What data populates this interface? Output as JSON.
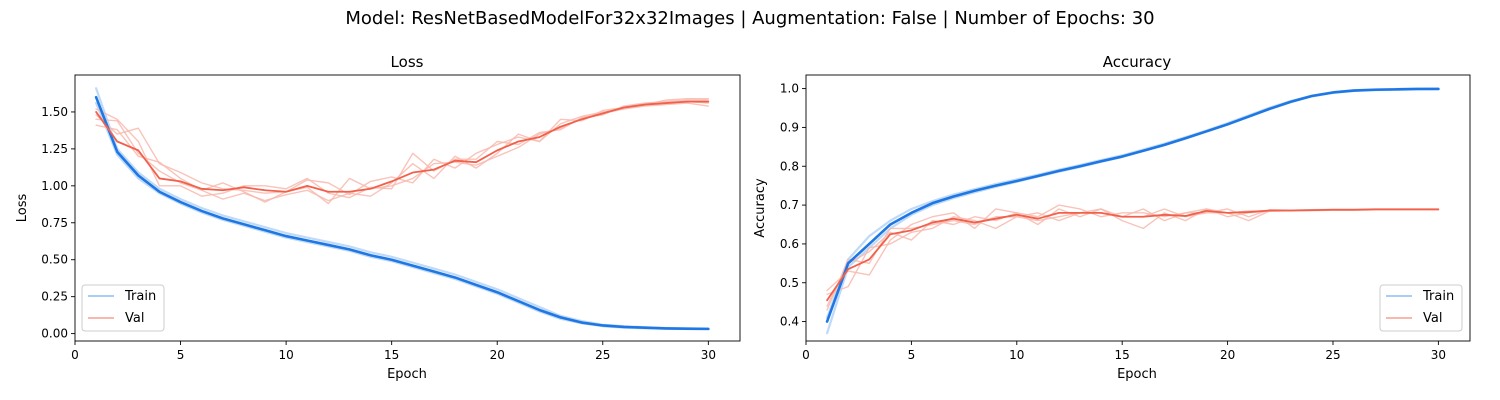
{
  "suptitle": "Model: ResNetBasedModelFor32x32Images | Augmentation: False | Number of Epochs: 30",
  "colors": {
    "train": "#1f77e4",
    "train_light": "#a8cdf6",
    "val": "#f0604a",
    "val_light": "#f8b8ad"
  },
  "chart_data": [
    {
      "type": "line",
      "title": "Loss",
      "xlabel": "Epoch",
      "ylabel": "Loss",
      "xlim": [
        0,
        31.5
      ],
      "ylim": [
        -0.05,
        1.75
      ],
      "xticks": [
        0,
        5,
        10,
        15,
        20,
        25,
        30
      ],
      "yticks": [
        0.0,
        0.25,
        0.5,
        0.75,
        1.0,
        1.25,
        1.5
      ],
      "ytick_labels": [
        "0.00",
        "0.25",
        "0.50",
        "0.75",
        "1.00",
        "1.25",
        "1.50"
      ],
      "legend": {
        "position": "lower-left",
        "entries": [
          "Train",
          "Val"
        ]
      },
      "grid": false,
      "x": [
        1,
        2,
        3,
        4,
        5,
        6,
        7,
        8,
        9,
        10,
        11,
        12,
        13,
        14,
        15,
        16,
        17,
        18,
        19,
        20,
        21,
        22,
        23,
        24,
        25,
        26,
        27,
        28,
        29,
        30
      ],
      "series": [
        {
          "name": "Train",
          "role": "mean",
          "values": [
            1.6,
            1.23,
            1.07,
            0.96,
            0.89,
            0.83,
            0.78,
            0.74,
            0.7,
            0.66,
            0.63,
            0.6,
            0.57,
            0.53,
            0.5,
            0.46,
            0.42,
            0.38,
            0.33,
            0.28,
            0.22,
            0.16,
            0.11,
            0.075,
            0.055,
            0.045,
            0.04,
            0.035,
            0.033,
            0.032
          ]
        },
        {
          "role": "run",
          "group": "Train",
          "values": [
            1.66,
            1.25,
            1.09,
            0.98,
            0.91,
            0.85,
            0.8,
            0.76,
            0.72,
            0.68,
            0.65,
            0.62,
            0.59,
            0.55,
            0.52,
            0.48,
            0.44,
            0.4,
            0.35,
            0.3,
            0.24,
            0.18,
            0.12,
            0.085,
            0.06,
            0.05,
            0.043,
            0.038,
            0.035,
            0.034
          ]
        },
        {
          "role": "run",
          "group": "Train",
          "values": [
            1.56,
            1.21,
            1.05,
            0.95,
            0.88,
            0.82,
            0.77,
            0.73,
            0.69,
            0.65,
            0.62,
            0.59,
            0.56,
            0.52,
            0.49,
            0.45,
            0.41,
            0.37,
            0.32,
            0.27,
            0.21,
            0.15,
            0.1,
            0.07,
            0.05,
            0.04,
            0.036,
            0.033,
            0.031,
            0.03
          ]
        },
        {
          "name": "Val",
          "role": "mean",
          "values": [
            1.5,
            1.3,
            1.24,
            1.05,
            1.03,
            0.98,
            0.97,
            0.99,
            0.97,
            0.96,
            1.0,
            0.96,
            0.96,
            0.98,
            1.03,
            1.09,
            1.11,
            1.17,
            1.16,
            1.24,
            1.3,
            1.33,
            1.4,
            1.45,
            1.49,
            1.53,
            1.55,
            1.56,
            1.57,
            1.57
          ]
        },
        {
          "role": "run",
          "group": "Val",
          "values": [
            1.45,
            1.44,
            1.22,
            1.1,
            1.02,
            0.97,
            0.91,
            0.95,
            0.9,
            0.94,
            0.97,
            0.9,
            0.95,
            0.93,
            1.02,
            1.15,
            1.05,
            1.2,
            1.12,
            1.22,
            1.35,
            1.3,
            1.42,
            1.47,
            1.5,
            1.52,
            1.55,
            1.58,
            1.59,
            1.59
          ]
        },
        {
          "role": "run",
          "group": "Val",
          "values": [
            1.52,
            1.45,
            1.3,
            1.0,
            1.0,
            0.93,
            0.95,
            1.0,
            1.0,
            0.98,
            1.05,
            0.95,
            0.92,
            0.99,
            0.98,
            1.22,
            1.1,
            1.18,
            1.18,
            1.3,
            1.28,
            1.36,
            1.38,
            1.46,
            1.48,
            1.54,
            1.56,
            1.57,
            1.58,
            1.58
          ]
        },
        {
          "role": "run",
          "group": "Val",
          "values": [
            1.48,
            1.35,
            1.39,
            1.15,
            1.09,
            1.02,
            0.98,
            0.97,
            0.95,
            0.96,
            1.04,
            1.02,
            0.94,
            1.03,
            1.06,
            1.02,
            1.18,
            1.12,
            1.22,
            1.28,
            1.33,
            1.3,
            1.45,
            1.44,
            1.51,
            1.53,
            1.55,
            1.56,
            1.57,
            1.56
          ]
        },
        {
          "role": "run",
          "group": "Val",
          "values": [
            1.41,
            1.38,
            1.2,
            1.16,
            1.05,
            0.97,
            1.02,
            0.96,
            0.89,
            0.96,
            0.99,
            0.88,
            1.05,
            0.98,
            1.0,
            1.05,
            1.15,
            1.16,
            1.14,
            1.2,
            1.26,
            1.35,
            1.39,
            1.46,
            1.49,
            1.52,
            1.54,
            1.55,
            1.56,
            1.54
          ]
        }
      ]
    },
    {
      "type": "line",
      "title": "Accuracy",
      "xlabel": "Epoch",
      "ylabel": "Accuracy",
      "xlim": [
        0,
        31.5
      ],
      "ylim": [
        0.35,
        1.035
      ],
      "xticks": [
        0,
        5,
        10,
        15,
        20,
        25,
        30
      ],
      "yticks": [
        0.4,
        0.5,
        0.6,
        0.7,
        0.8,
        0.9,
        1.0
      ],
      "ytick_labels": [
        "0.4",
        "0.5",
        "0.6",
        "0.7",
        "0.8",
        "0.9",
        "1.0"
      ],
      "legend": {
        "position": "lower-right",
        "entries": [
          "Train",
          "Val"
        ]
      },
      "grid": false,
      "x": [
        1,
        2,
        3,
        4,
        5,
        6,
        7,
        8,
        9,
        10,
        11,
        12,
        13,
        14,
        15,
        16,
        17,
        18,
        19,
        20,
        21,
        22,
        23,
        24,
        25,
        26,
        27,
        28,
        29,
        30
      ],
      "series": [
        {
          "name": "Train",
          "role": "mean",
          "values": [
            0.4,
            0.55,
            0.6,
            0.65,
            0.68,
            0.705,
            0.722,
            0.737,
            0.75,
            0.762,
            0.775,
            0.788,
            0.8,
            0.813,
            0.825,
            0.84,
            0.855,
            0.872,
            0.89,
            0.908,
            0.928,
            0.948,
            0.966,
            0.981,
            0.99,
            0.995,
            0.997,
            0.998,
            0.999,
            0.999
          ]
        },
        {
          "role": "run",
          "group": "Train",
          "values": [
            0.37,
            0.54,
            0.59,
            0.64,
            0.675,
            0.7,
            0.718,
            0.733,
            0.747,
            0.76,
            0.773,
            0.786,
            0.798,
            0.811,
            0.824,
            0.839,
            0.854,
            0.871,
            0.889,
            0.907,
            0.927,
            0.947,
            0.965,
            0.98,
            0.989,
            0.994,
            0.996,
            0.997,
            0.998,
            0.999
          ]
        },
        {
          "role": "run",
          "group": "Train",
          "values": [
            0.41,
            0.56,
            0.62,
            0.66,
            0.69,
            0.71,
            0.727,
            0.741,
            0.754,
            0.766,
            0.778,
            0.791,
            0.803,
            0.816,
            0.828,
            0.843,
            0.858,
            0.875,
            0.892,
            0.911,
            0.931,
            0.951,
            0.968,
            0.982,
            0.991,
            0.996,
            0.998,
            0.999,
            0.999,
            1.0
          ]
        },
        {
          "name": "Val",
          "role": "mean",
          "values": [
            0.455,
            0.535,
            0.56,
            0.625,
            0.635,
            0.655,
            0.665,
            0.655,
            0.665,
            0.675,
            0.665,
            0.68,
            0.68,
            0.68,
            0.67,
            0.67,
            0.675,
            0.672,
            0.685,
            0.68,
            0.682,
            0.686,
            0.686,
            0.687,
            0.688,
            0.688,
            0.689,
            0.689,
            0.689,
            0.689
          ]
        },
        {
          "role": "run",
          "group": "Val",
          "values": [
            0.48,
            0.53,
            0.52,
            0.61,
            0.65,
            0.67,
            0.68,
            0.64,
            0.69,
            0.68,
            0.65,
            0.69,
            0.67,
            0.69,
            0.66,
            0.64,
            0.68,
            0.66,
            0.69,
            0.67,
            0.68,
            0.685,
            0.686,
            0.687,
            0.688,
            0.688,
            0.689,
            0.689,
            0.689,
            0.689
          ]
        },
        {
          "role": "run",
          "group": "Val",
          "values": [
            0.44,
            0.55,
            0.58,
            0.63,
            0.61,
            0.66,
            0.65,
            0.67,
            0.66,
            0.68,
            0.67,
            0.7,
            0.69,
            0.67,
            0.68,
            0.68,
            0.67,
            0.68,
            0.68,
            0.69,
            0.67,
            0.688,
            0.687,
            0.688,
            0.689,
            0.689,
            0.69,
            0.69,
            0.69,
            0.69
          ]
        },
        {
          "role": "run",
          "group": "Val",
          "values": [
            0.47,
            0.49,
            0.59,
            0.6,
            0.63,
            0.64,
            0.67,
            0.66,
            0.64,
            0.67,
            0.68,
            0.66,
            0.68,
            0.69,
            0.67,
            0.67,
            0.69,
            0.67,
            0.68,
            0.68,
            0.685,
            0.684,
            0.686,
            0.686,
            0.687,
            0.687,
            0.688,
            0.688,
            0.688,
            0.688
          ]
        },
        {
          "role": "run",
          "group": "Val",
          "values": [
            0.43,
            0.56,
            0.55,
            0.64,
            0.64,
            0.65,
            0.66,
            0.65,
            0.67,
            0.67,
            0.66,
            0.67,
            0.68,
            0.68,
            0.67,
            0.69,
            0.66,
            0.68,
            0.69,
            0.68,
            0.66,
            0.685,
            0.685,
            0.686,
            0.687,
            0.687,
            0.688,
            0.688,
            0.688,
            0.688
          ]
        }
      ]
    }
  ]
}
